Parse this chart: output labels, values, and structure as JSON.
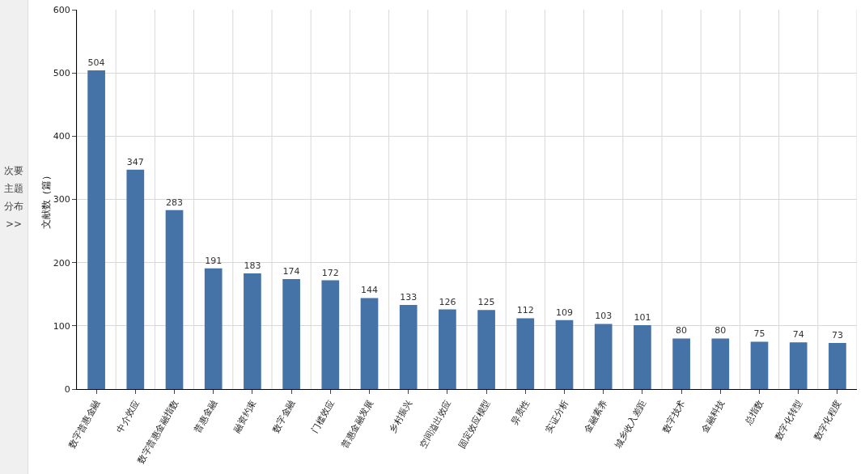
{
  "chart_data": {
    "type": "bar",
    "categories": [
      "数字普惠金融",
      "中介效应",
      "数字普惠金融指数",
      "普惠金融",
      "融资约束",
      "数字金融",
      "门槛效应",
      "普惠金融发展",
      "乡村振兴",
      "空间溢出效应",
      "固定效应模型",
      "异质性",
      "实证分析",
      "金融素养",
      "城乡收入差距",
      "数字技术",
      "金融科技",
      "总指数",
      "数字化转型",
      "数字化程度"
    ],
    "values": [
      504,
      347,
      283,
      191,
      183,
      174,
      172,
      144,
      133,
      126,
      125,
      112,
      109,
      103,
      101,
      80,
      80,
      75,
      74,
      73
    ],
    "color": "#4572a7",
    "ylabel": "文献数（篇）",
    "ylim": [
      0,
      600
    ],
    "yticks": [
      0,
      100,
      200,
      300,
      400,
      500,
      600
    ],
    "grid": true,
    "data_labels": true,
    "annotations": [
      "次要主题分布 >>"
    ]
  }
}
